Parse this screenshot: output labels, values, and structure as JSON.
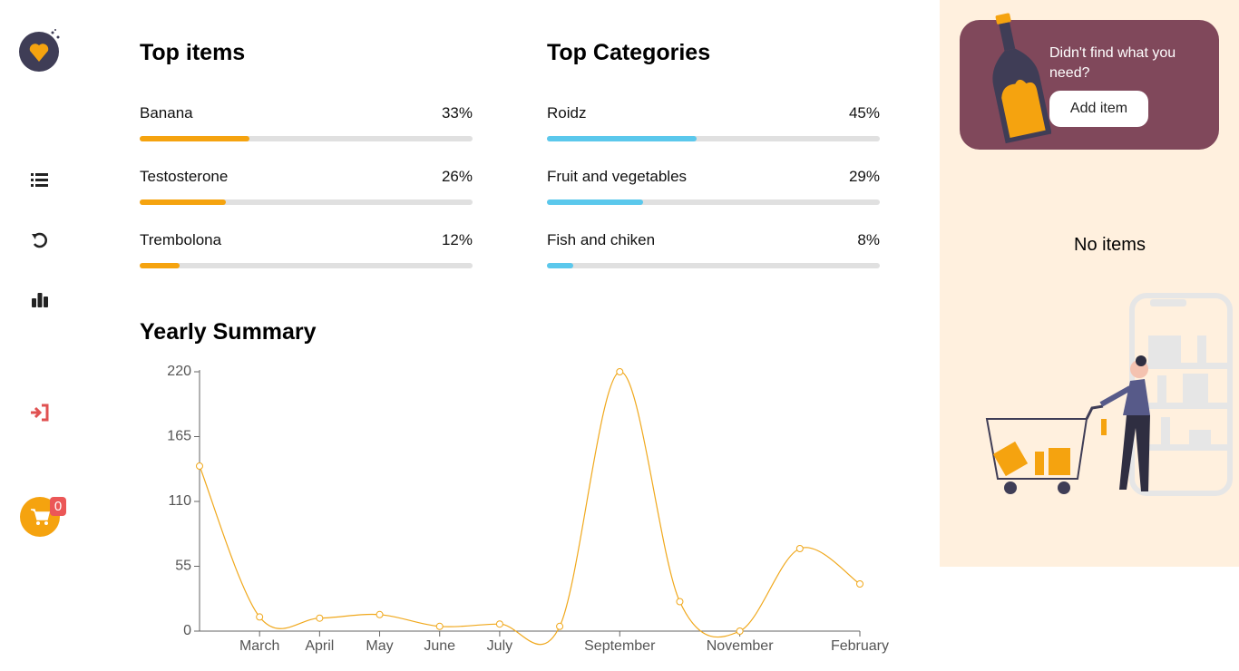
{
  "sidebar": {
    "cart_count": 0
  },
  "top_items": {
    "title": "Top items",
    "color": "#f5a30f",
    "items": [
      {
        "name": "Banana",
        "value": 33,
        "value_label": "33%"
      },
      {
        "name": "Testosterone",
        "value": 26,
        "value_label": "26%"
      },
      {
        "name": "Trembolona",
        "value": 12,
        "value_label": "12%"
      }
    ]
  },
  "top_categories": {
    "title": "Top Categories",
    "color": "#5bc8ec",
    "items": [
      {
        "name": "Roidz",
        "value": 45,
        "value_label": "45%"
      },
      {
        "name": "Fruit and vegetables",
        "value": 29,
        "value_label": "29%"
      },
      {
        "name": "Fish and chiken",
        "value": 8,
        "value_label": "8%"
      }
    ]
  },
  "chart_data": {
    "type": "line",
    "title": "Yearly Summary",
    "categories": [
      null,
      "March",
      "April",
      "May",
      "June",
      "July",
      null,
      "September",
      null,
      "November",
      null,
      "February"
    ],
    "series": [
      {
        "color": "#f0a81c",
        "values": [
          140,
          12,
          11,
          14,
          4,
          6,
          4,
          220,
          25,
          0,
          70,
          40
        ]
      }
    ],
    "ylim": [
      0,
      220
    ],
    "yticks": [
      0,
      55,
      110,
      165,
      220
    ]
  },
  "panel": {
    "prompt": "Didn't find what you need?",
    "button": "Add item",
    "empty": "No items"
  }
}
